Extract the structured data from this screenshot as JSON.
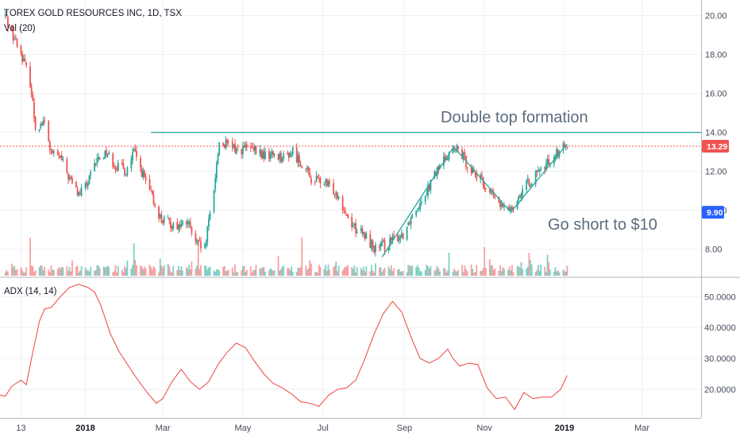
{
  "header": {
    "symbol_line": "TOREX GOLD RESOURCES INC, 1D, TSX",
    "volume_label": "Vol (20)",
    "adx_label": "ADX (14, 14)"
  },
  "colors": {
    "up": "#26a69a",
    "down": "#ef5350",
    "vol_up": "#7fcfc5",
    "vol_down": "#f6a0a0",
    "trendline": "#26a69a",
    "price_line": "#ef5350",
    "adx_line": "#ef5350",
    "last_badge": "#ef5350",
    "target_badge": "#2962ff"
  },
  "chart_data": [
    {
      "type": "candlestick",
      "title": "TOREX GOLD RESOURCES INC, 1D, TSX",
      "ylim": [
        6.6,
        20.8
      ],
      "y_ticks": [
        "8.00",
        "10.00",
        "12.00",
        "14.00",
        "16.00",
        "18.00",
        "20.00"
      ],
      "x_ticks": [
        "13",
        "2018",
        "Mar",
        "May",
        "Jul",
        "Sep",
        "Nov",
        "2019",
        "Mar"
      ],
      "last_price": "13.29",
      "target_price": "9.90",
      "resistance_level": 14.0,
      "annotations": [
        "Double top formation",
        "Go short to $10"
      ],
      "anchors": [
        [
          "2017-11-01",
          20.0
        ],
        [
          "2017-11-08",
          18.8
        ],
        [
          "2017-11-14",
          17.9
        ],
        [
          "2017-11-20",
          16.6
        ],
        [
          "2017-11-24",
          14.3
        ],
        [
          "2017-12-01",
          14.5
        ],
        [
          "2017-12-06",
          12.9
        ],
        [
          "2017-12-13",
          12.7
        ],
        [
          "2017-12-20",
          11.6
        ],
        [
          "2017-12-27",
          10.8
        ],
        [
          "2018-01-03",
          11.4
        ],
        [
          "2018-01-10",
          12.6
        ],
        [
          "2018-01-17",
          13.0
        ],
        [
          "2018-01-24",
          12.3
        ],
        [
          "2018-02-01",
          12.0
        ],
        [
          "2018-02-07",
          13.0
        ],
        [
          "2018-02-14",
          11.8
        ],
        [
          "2018-02-21",
          10.6
        ],
        [
          "2018-02-28",
          9.5
        ],
        [
          "2018-03-07",
          9.3
        ],
        [
          "2018-03-14",
          9.2
        ],
        [
          "2018-03-20",
          9.4
        ],
        [
          "2018-03-26",
          8.3
        ],
        [
          "2018-04-02",
          8.0
        ],
        [
          "2018-04-09",
          11.2
        ],
        [
          "2018-04-13",
          13.5
        ],
        [
          "2018-04-20",
          13.3
        ],
        [
          "2018-04-27",
          13.1
        ],
        [
          "2018-05-04",
          13.2
        ],
        [
          "2018-05-11",
          13.0
        ],
        [
          "2018-05-18",
          12.8
        ],
        [
          "2018-05-25",
          12.9
        ],
        [
          "2018-06-01",
          12.7
        ],
        [
          "2018-06-08",
          13.0
        ],
        [
          "2018-06-15",
          12.4
        ],
        [
          "2018-06-22",
          11.6
        ],
        [
          "2018-06-29",
          11.5
        ],
        [
          "2018-07-06",
          11.2
        ],
        [
          "2018-07-13",
          10.8
        ],
        [
          "2018-07-20",
          9.6
        ],
        [
          "2018-07-27",
          9.0
        ],
        [
          "2018-08-03",
          8.6
        ],
        [
          "2018-08-10",
          8.0
        ],
        [
          "2018-08-17",
          8.2
        ],
        [
          "2018-08-24",
          8.5
        ],
        [
          "2018-08-31",
          8.8
        ],
        [
          "2018-09-07",
          9.8
        ],
        [
          "2018-09-14",
          10.6
        ],
        [
          "2018-09-21",
          11.4
        ],
        [
          "2018-09-28",
          12.3
        ],
        [
          "2018-10-05",
          13.0
        ],
        [
          "2018-10-12",
          13.1
        ],
        [
          "2018-10-19",
          12.4
        ],
        [
          "2018-10-26",
          11.8
        ],
        [
          "2018-11-02",
          11.2
        ],
        [
          "2018-11-09",
          10.6
        ],
        [
          "2018-11-16",
          10.0
        ],
        [
          "2018-11-23",
          10.3
        ],
        [
          "2018-11-30",
          11.0
        ],
        [
          "2018-12-07",
          11.6
        ],
        [
          "2018-12-14",
          12.0
        ],
        [
          "2018-12-21",
          12.6
        ],
        [
          "2018-12-28",
          13.1
        ],
        [
          "2019-01-03",
          13.29
        ]
      ],
      "trendlines": [
        {
          "from": [
            "2018-08-15",
            7.6
          ],
          "to": [
            "2018-10-08",
            13.2
          ]
        },
        {
          "from": [
            "2018-10-08",
            13.3
          ],
          "to": [
            "2018-11-21",
            9.9
          ]
        },
        {
          "from": [
            "2018-11-21",
            9.9
          ],
          "to": [
            "2019-01-03",
            13.4
          ]
        }
      ],
      "volume_spikes": [
        [
          "2017-11-20",
          1.0
        ],
        [
          "2018-02-07",
          0.85
        ],
        [
          "2018-03-28",
          0.95
        ],
        [
          "2018-06-15",
          1.0
        ],
        [
          "2018-10-05",
          0.6
        ],
        [
          "2018-11-01",
          0.75
        ],
        [
          "2018-12-05",
          0.6
        ]
      ]
    },
    {
      "type": "line",
      "title": "ADX (14, 14)",
      "ylim": [
        11,
        56
      ],
      "y_ticks": [
        "20.0000",
        "30.0000",
        "40.0000",
        "50.0000"
      ],
      "points": [
        [
          "2017-10-25",
          18.5
        ],
        [
          "2017-11-01",
          17.8
        ],
        [
          "2017-11-06",
          21.0
        ],
        [
          "2017-11-13",
          23.0
        ],
        [
          "2017-11-17",
          21.5
        ],
        [
          "2017-11-21",
          30.0
        ],
        [
          "2017-11-27",
          42.0
        ],
        [
          "2017-12-01",
          46.0
        ],
        [
          "2017-12-06",
          46.5
        ],
        [
          "2017-12-13",
          50.0
        ],
        [
          "2017-12-20",
          53.0
        ],
        [
          "2017-12-27",
          54.0
        ],
        [
          "2018-01-03",
          53.0
        ],
        [
          "2018-01-08",
          51.5
        ],
        [
          "2018-01-13",
          47.0
        ],
        [
          "2018-01-20",
          38.0
        ],
        [
          "2018-01-27",
          32.0
        ],
        [
          "2018-02-03",
          27.5
        ],
        [
          "2018-02-10",
          23.0
        ],
        [
          "2018-02-17",
          19.0
        ],
        [
          "2018-02-24",
          15.5
        ],
        [
          "2018-03-01",
          17.0
        ],
        [
          "2018-03-08",
          22.5
        ],
        [
          "2018-03-15",
          26.5
        ],
        [
          "2018-03-22",
          22.5
        ],
        [
          "2018-03-29",
          20.0
        ],
        [
          "2018-04-05",
          22.5
        ],
        [
          "2018-04-12",
          28.0
        ],
        [
          "2018-04-19",
          32.0
        ],
        [
          "2018-04-26",
          35.0
        ],
        [
          "2018-05-03",
          33.5
        ],
        [
          "2018-05-10",
          29.0
        ],
        [
          "2018-05-17",
          25.0
        ],
        [
          "2018-05-24",
          22.0
        ],
        [
          "2018-05-31",
          20.5
        ],
        [
          "2018-06-07",
          18.5
        ],
        [
          "2018-06-14",
          16.0
        ],
        [
          "2018-06-21",
          15.5
        ],
        [
          "2018-06-28",
          14.5
        ],
        [
          "2018-07-05",
          18.0
        ],
        [
          "2018-07-12",
          20.0
        ],
        [
          "2018-07-19",
          20.5
        ],
        [
          "2018-07-26",
          23.0
        ],
        [
          "2018-08-02",
          30.0
        ],
        [
          "2018-08-09",
          38.0
        ],
        [
          "2018-08-16",
          44.5
        ],
        [
          "2018-08-23",
          48.5
        ],
        [
          "2018-08-30",
          45.0
        ],
        [
          "2018-09-06",
          37.0
        ],
        [
          "2018-09-13",
          30.0
        ],
        [
          "2018-09-20",
          28.5
        ],
        [
          "2018-09-27",
          30.0
        ],
        [
          "2018-10-04",
          33.0
        ],
        [
          "2018-10-08",
          30.0
        ],
        [
          "2018-10-13",
          27.5
        ],
        [
          "2018-10-20",
          28.5
        ],
        [
          "2018-10-27",
          28.0
        ],
        [
          "2018-11-03",
          20.5
        ],
        [
          "2018-11-10",
          17.0
        ],
        [
          "2018-11-17",
          17.5
        ],
        [
          "2018-11-24",
          13.5
        ],
        [
          "2018-12-01",
          19.0
        ],
        [
          "2018-12-08",
          17.0
        ],
        [
          "2018-12-15",
          17.5
        ],
        [
          "2018-12-22",
          17.5
        ],
        [
          "2018-12-29",
          20.0
        ],
        [
          "2019-01-03",
          24.5
        ]
      ]
    }
  ]
}
